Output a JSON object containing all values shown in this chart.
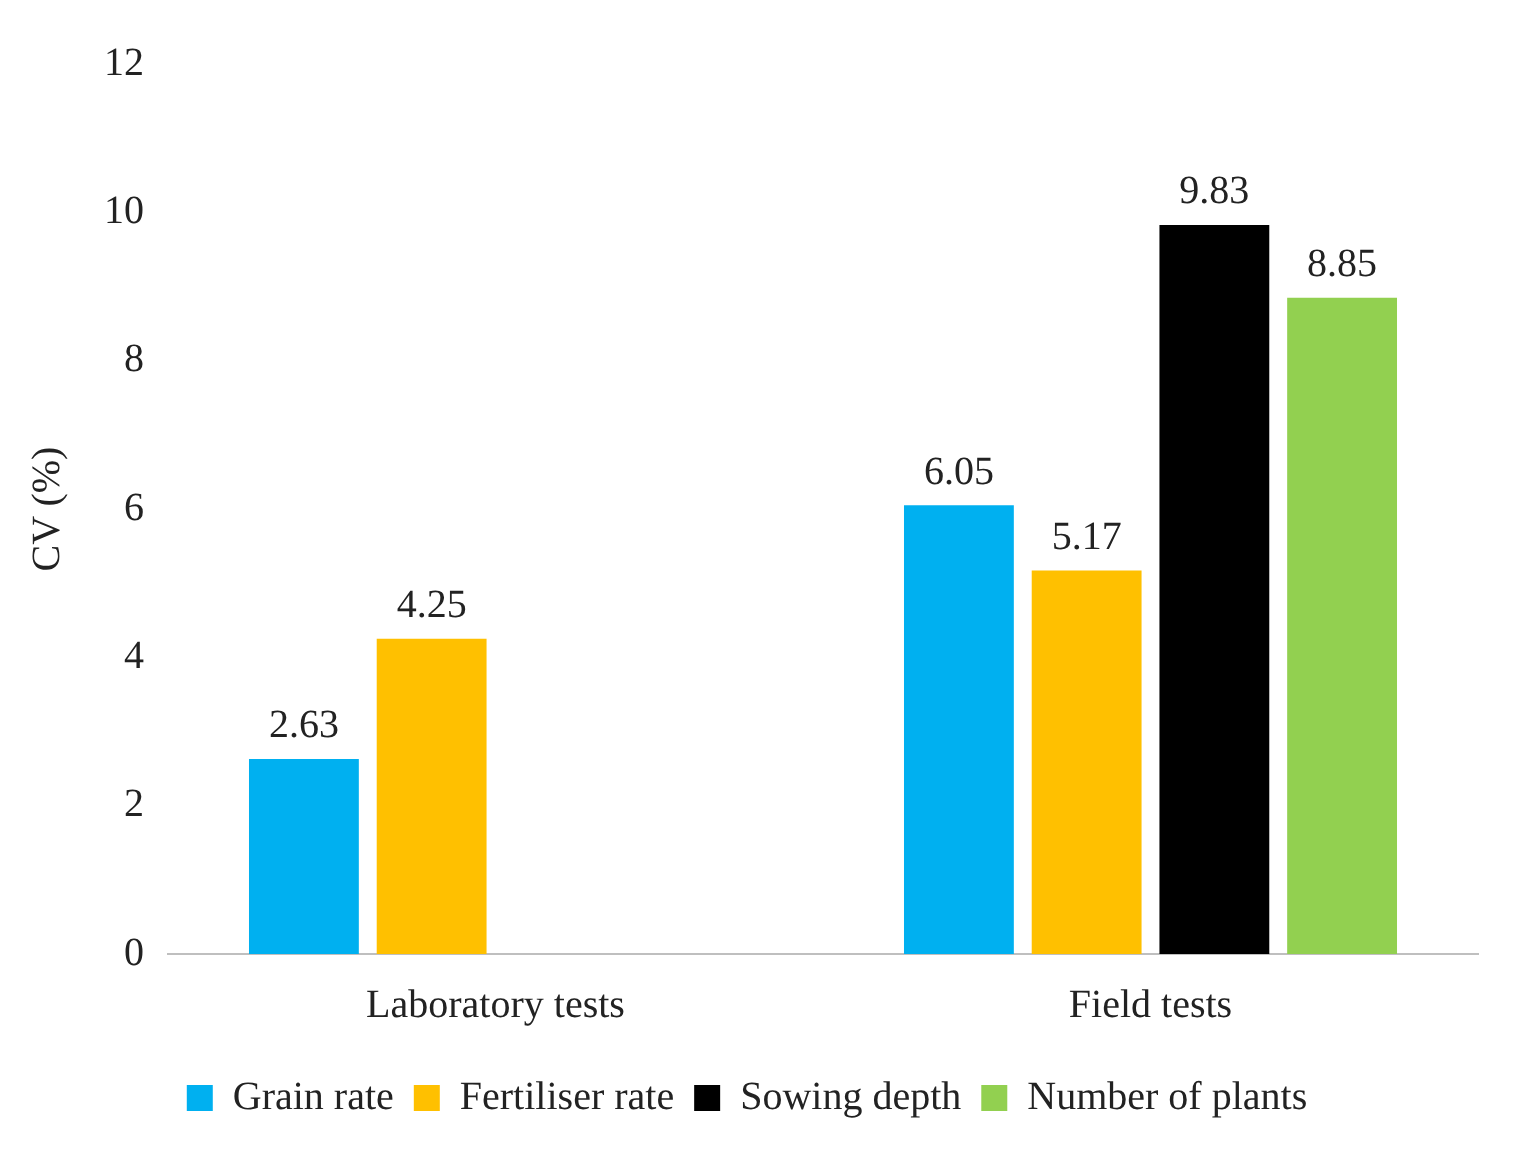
{
  "chart_data": {
    "type": "bar",
    "ylabel": "CV (%)",
    "categories": [
      "Laboratory tests",
      "Field tests"
    ],
    "series": [
      {
        "name": "Grain rate",
        "color": "#00b0f0",
        "values": [
          2.63,
          6.05
        ]
      },
      {
        "name": "Fertiliser rate",
        "color": "#ffc000",
        "values": [
          4.25,
          5.17
        ]
      },
      {
        "name": "Sowing depth",
        "color": "#000000",
        "values": [
          null,
          9.83
        ]
      },
      {
        "name": "Number of plants",
        "color": "#92d050",
        "values": [
          null,
          8.85
        ]
      }
    ],
    "ylim": [
      0,
      12
    ],
    "yticks": [
      0,
      2,
      4,
      6,
      8,
      10,
      12
    ],
    "grid": false,
    "legend": "bottom",
    "data_labels": true
  }
}
